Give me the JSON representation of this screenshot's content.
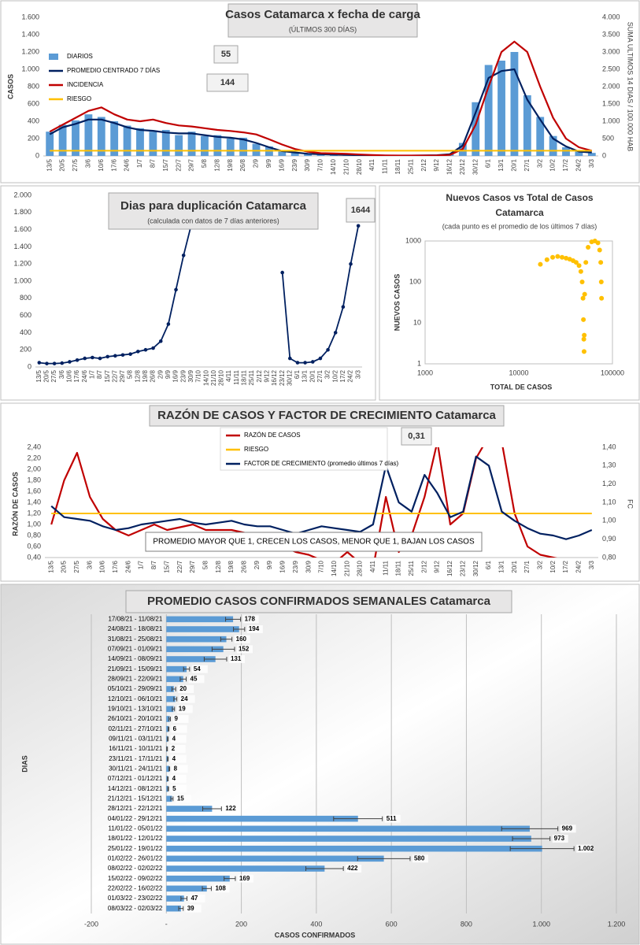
{
  "chart_data": [
    {
      "type": "combo",
      "title": "Casos Catamarca x fecha de carga",
      "subtitle": "(ÚLTIMOS 300 DÍAS)",
      "y_label": "CASOS",
      "y2_label": "SUMA  ULTIMOS 14 DIAS / 100.000 HAB",
      "annotations": [
        "55",
        "144"
      ],
      "categories": [
        "13/5",
        "20/5",
        "27/5",
        "3/6",
        "10/6",
        "17/6",
        "24/6",
        "1/7",
        "8/7",
        "15/7",
        "22/7",
        "29/7",
        "5/8",
        "12/8",
        "19/8",
        "26/8",
        "2/9",
        "9/9",
        "16/9",
        "23/9",
        "30/9",
        "7/10",
        "14/10",
        "21/10",
        "28/10",
        "4/11",
        "11/11",
        "18/11",
        "25/11",
        "2/12",
        "9/12",
        "16/12",
        "23/12",
        "30/12",
        "6/1",
        "13/1",
        "20/1",
        "27/1",
        "3/2",
        "10/2",
        "17/2",
        "24/2",
        "3/3"
      ],
      "series": [
        {
          "name": "DIARIOS",
          "type": "bar",
          "axis": "y",
          "color": "#5b9bd5",
          "values": [
            280,
            360,
            410,
            480,
            450,
            400,
            350,
            320,
            280,
            300,
            240,
            280,
            230,
            240,
            200,
            210,
            140,
            110,
            60,
            35,
            30,
            18,
            16,
            10,
            9,
            6,
            3,
            5,
            4,
            6,
            9,
            25,
            150,
            620,
            1050,
            1100,
            1200,
            700,
            450,
            230,
            100,
            60,
            35
          ]
        },
        {
          "name": "PROMEDIO CENTRADO 7 DÍAS",
          "type": "line",
          "axis": "y",
          "color": "#002060",
          "values": [
            250,
            330,
            370,
            420,
            420,
            380,
            330,
            300,
            290,
            270,
            260,
            260,
            240,
            220,
            210,
            190,
            150,
            100,
            55,
            40,
            25,
            20,
            15,
            12,
            8,
            5,
            4,
            4,
            4,
            5,
            8,
            20,
            120,
            500,
            900,
            980,
            1000,
            650,
            420,
            200,
            110,
            50,
            40
          ]
        },
        {
          "name": "INCIDENCIA",
          "type": "line",
          "axis": "y2",
          "color": "#c00000",
          "values": [
            700,
            900,
            1100,
            1300,
            1400,
            1200,
            1050,
            1000,
            1050,
            950,
            880,
            850,
            800,
            750,
            720,
            680,
            620,
            480,
            330,
            200,
            120,
            80,
            70,
            60,
            40,
            25,
            15,
            12,
            12,
            12,
            15,
            30,
            200,
            900,
            2000,
            3000,
            3300,
            3000,
            2000,
            1100,
            500,
            250,
            150
          ]
        },
        {
          "name": "RIESGO",
          "type": "line",
          "axis": "y2",
          "color": "#ffc000",
          "values": [
            150,
            150,
            150,
            150,
            150,
            150,
            150,
            150,
            150,
            150,
            150,
            150,
            150,
            150,
            150,
            150,
            150,
            150,
            150,
            150,
            150,
            150,
            150,
            150,
            150,
            150,
            150,
            150,
            150,
            150,
            150,
            150,
            150,
            150,
            150,
            150,
            150,
            150,
            150,
            150,
            150,
            150,
            150
          ]
        }
      ],
      "ylim": [
        0,
        1600
      ],
      "yticks": [
        0,
        200,
        400,
        600,
        800,
        {
          "value": 1000,
          "label": "1.000"
        },
        {
          "value": 1200,
          "label": "1.200"
        },
        {
          "value": 1400,
          "label": "1.400"
        },
        {
          "value": 1600,
          "label": "1.600"
        }
      ],
      "y2lim": [
        0,
        4000
      ],
      "y2ticks": [
        0,
        500,
        {
          "value": 1000,
          "label": "1.000"
        },
        {
          "value": 1500,
          "label": "1.500"
        },
        {
          "value": 2000,
          "label": "2.000"
        },
        {
          "value": 2500,
          "label": "2.500"
        },
        {
          "value": 3000,
          "label": "3.000"
        },
        {
          "value": 3500,
          "label": "3.500"
        },
        {
          "value": 4000,
          "label": "4.000"
        }
      ]
    },
    {
      "type": "line",
      "title": "Dias para duplicación Catamarca",
      "subtitle": "(calculada con datos de 7 días anteriores)",
      "annotations": [
        "1644"
      ],
      "categories": [
        "13/5",
        "20/5",
        "27/5",
        "3/6",
        "10/6",
        "17/6",
        "24/6",
        "1/7",
        "8/7",
        "15/7",
        "22/7",
        "29/7",
        "5/8",
        "12/8",
        "19/8",
        "26/8",
        "2/9",
        "9/9",
        "16/9",
        "23/9",
        "30/9",
        "7/10",
        "14/10",
        "21/10",
        "28/10",
        "4/11",
        "11/11",
        "18/11",
        "25/11",
        "2/12",
        "9/12",
        "16/12",
        "23/12",
        "30/12",
        "6/1",
        "13/1",
        "20/1",
        "27/1",
        "3/2",
        "10/2",
        "17/2",
        "24/2",
        "3/3"
      ],
      "color": "#002060",
      "values": [
        50,
        40,
        40,
        45,
        60,
        80,
        100,
        110,
        100,
        120,
        130,
        140,
        150,
        180,
        200,
        220,
        300,
        500,
        900,
        1300,
        1650,
        null,
        null,
        null,
        null,
        null,
        null,
        null,
        null,
        null,
        null,
        null,
        1100,
        100,
        50,
        50,
        60,
        100,
        200,
        400,
        700,
        1200,
        1644
      ],
      "ylim": [
        0,
        2000
      ],
      "yticks": [
        0,
        200,
        400,
        600,
        800,
        {
          "value": 1000,
          "label": "1.000"
        },
        {
          "value": 1200,
          "label": "1.200"
        },
        {
          "value": 1400,
          "label": "1.400"
        },
        {
          "value": 1600,
          "label": "1.600"
        },
        {
          "value": 1800,
          "label": "1.800"
        },
        {
          "value": 2000,
          "label": "2.000"
        }
      ]
    },
    {
      "type": "scatter",
      "title": "Nuevos Casos vs Total de Casos",
      "title_line2": "Catamarca",
      "subtitle": "(cada punto es el promedio de los últimos 7 días)",
      "x_label": "TOTAL DE CASOS",
      "y_label": "NUEVOS CASOS",
      "color": "#ffc000",
      "xlog": true,
      "ylog": true,
      "x": [
        17000,
        20000,
        23000,
        26000,
        29000,
        32000,
        35000,
        38000,
        41000,
        44000,
        46000,
        47500,
        48500,
        49000,
        49500,
        49800,
        50000,
        50500,
        52000,
        55000,
        60000,
        65000,
        70000,
        73000,
        75000,
        76000,
        76500
      ],
      "values": [
        270,
        350,
        400,
        420,
        400,
        380,
        360,
        330,
        300,
        250,
        180,
        100,
        40,
        12,
        4,
        2,
        5,
        50,
        300,
        700,
        950,
        1000,
        900,
        600,
        300,
        100,
        40
      ],
      "xlim": [
        1000,
        100000
      ],
      "xticks": [
        1000,
        10000,
        100000
      ],
      "ylim": [
        1,
        1000
      ],
      "yticks": [
        1,
        10,
        100,
        1000
      ]
    },
    {
      "type": "combo",
      "title": "RAZÓN DE CASOS Y FACTOR DE CRECIMIENTO Catamarca",
      "y_label": "RAZÓN DE CASOS",
      "y2_label": "FC",
      "annotations": [
        "0,31"
      ],
      "note": "PROMEDIO MAYOR QUE 1, CRECEN LOS CASOS, MENOR QUE 1, BAJAN LOS CASOS",
      "categories": [
        "13/5",
        "20/5",
        "27/5",
        "3/6",
        "10/6",
        "17/6",
        "24/6",
        "1/7",
        "8/7",
        "15/7",
        "22/7",
        "29/7",
        "5/8",
        "12/8",
        "19/8",
        "26/8",
        "2/9",
        "9/9",
        "16/9",
        "23/9",
        "30/9",
        "7/10",
        "14/10",
        "21/10",
        "28/10",
        "4/11",
        "11/11",
        "18/11",
        "25/11",
        "2/12",
        "9/12",
        "16/12",
        "23/12",
        "30/12",
        "6/1",
        "13/1",
        "20/1",
        "27/1",
        "3/2",
        "10/2",
        "17/2",
        "24/2",
        "3/3"
      ],
      "series": [
        {
          "name": "RAZÓN DE CASOS",
          "type": "line",
          "axis": "y",
          "color": "#c00000",
          "values": [
            1.0,
            1.8,
            2.3,
            1.5,
            1.1,
            0.9,
            0.8,
            0.9,
            1.0,
            0.9,
            0.95,
            1.0,
            0.9,
            0.9,
            0.9,
            0.85,
            0.8,
            0.7,
            0.6,
            0.5,
            0.45,
            0.35,
            0.3,
            0.5,
            0.3,
            0.2,
            1.5,
            0.5,
            0.8,
            1.5,
            2.5,
            1.0,
            1.2,
            2.2,
            2.6,
            2.5,
            1.2,
            0.6,
            0.45,
            0.4,
            0.35,
            0.3,
            0.31
          ]
        },
        {
          "name": "RIESGO",
          "type": "line",
          "axis": "y",
          "color": "#ffc000",
          "values": [
            1.2,
            1.2,
            1.2,
            1.2,
            1.2,
            1.2,
            1.2,
            1.2,
            1.2,
            1.2,
            1.2,
            1.2,
            1.2,
            1.2,
            1.2,
            1.2,
            1.2,
            1.2,
            1.2,
            1.2,
            1.2,
            1.2,
            1.2,
            1.2,
            1.2,
            1.2,
            1.2,
            1.2,
            1.2,
            1.2,
            1.2,
            1.2,
            1.2,
            1.2,
            1.2,
            1.2,
            1.2,
            1.2,
            1.2,
            1.2,
            1.2,
            1.2,
            1.2
          ]
        },
        {
          "name": "FACTOR DE CRECIMIENTO (promedio últimos 7 días)",
          "type": "line",
          "axis": "y2",
          "color": "#002060",
          "values": [
            1.08,
            1.02,
            1.01,
            1.0,
            0.97,
            0.95,
            0.96,
            0.98,
            0.99,
            1.0,
            1.01,
            0.99,
            0.98,
            0.99,
            1.0,
            0.98,
            0.97,
            0.97,
            0.95,
            0.93,
            0.95,
            0.97,
            0.96,
            0.95,
            0.94,
            0.98,
            1.3,
            1.1,
            1.05,
            1.25,
            1.15,
            1.02,
            1.05,
            1.35,
            1.3,
            1.05,
            1.0,
            0.96,
            0.93,
            0.92,
            0.9,
            0.92,
            0.95
          ]
        }
      ],
      "ylim": [
        0.4,
        2.4
      ],
      "yticks": [
        {
          "value": 0.4,
          "label": "0,40"
        },
        {
          "value": 0.6,
          "label": "0,60"
        },
        {
          "value": 0.8,
          "label": "0,80"
        },
        {
          "value": 1.0,
          "label": "1,00"
        },
        {
          "value": 1.2,
          "label": "1,20"
        },
        {
          "value": 1.4,
          "label": "1,40"
        },
        {
          "value": 1.6,
          "label": "1,60"
        },
        {
          "value": 1.8,
          "label": "1,80"
        },
        {
          "value": 2.0,
          "label": "2,00"
        },
        {
          "value": 2.2,
          "label": "2,20"
        },
        {
          "value": 2.4,
          "label": "2,40"
        }
      ],
      "y2lim": [
        0.8,
        1.4
      ],
      "y2ticks": [
        {
          "value": 0.8,
          "label": "0,80"
        },
        {
          "value": 0.9,
          "label": "0,90"
        },
        {
          "value": 1.0,
          "label": "1,00"
        },
        {
          "value": 1.1,
          "label": "1,10"
        },
        {
          "value": 1.2,
          "label": "1,20"
        },
        {
          "value": 1.3,
          "label": "1,30"
        },
        {
          "value": 1.4,
          "label": "1,40"
        }
      ]
    },
    {
      "type": "hbar",
      "title": "PROMEDIO CASOS CONFIRMADOS SEMANALES Catamarca",
      "x_label": "CASOS CONFIRMADOS",
      "y_label": "DIAS",
      "color": "#5b9bd5",
      "categories": [
        "17/08/21 - 11/08/21",
        "24/08/21 - 18/08/21",
        "31/08/21 - 25/08/21",
        "07/09/21 - 01/09/21",
        "14/09/21 - 08/09/21",
        "21/09/21 - 15/09/21",
        "28/09/21 - 22/09/21",
        "05/10/21 - 29/09/21",
        "12/10/21 - 06/10/21",
        "19/10/21 - 13/10/21",
        "26/10/21 - 20/10/21",
        "02/11/21 - 27/10/21",
        "09/11/21 - 03/11/21",
        "16/11/21 - 10/11/21",
        "23/11/21 - 17/11/21",
        "30/11/21 - 24/11/21",
        "07/12/21 - 01/12/21",
        "14/12/21 - 08/12/21",
        "21/12/21 - 15/12/21",
        "28/12/21 - 22/12/21",
        "04/01/22 - 29/12/21",
        "11/01/22 - 05/01/22",
        "18/01/22 - 12/01/22",
        "25/01/22 - 19/01/22",
        "01/02/22 - 26/01/22",
        "08/02/22 - 02/02/22",
        "15/02/22 - 09/02/22",
        "22/02/22 - 16/02/22",
        "01/03/22 - 23/02/22",
        "08/03/22 - 02/03/22"
      ],
      "values": [
        178,
        194,
        160,
        152,
        131,
        54,
        45,
        20,
        24,
        19,
        9,
        6,
        4,
        2,
        4,
        8,
        4,
        5,
        15,
        122,
        511,
        969,
        973,
        1002,
        580,
        422,
        169,
        108,
        47,
        39
      ],
      "value_labels": [
        "178",
        "194",
        "160",
        "152",
        "131",
        "54",
        "45",
        "20",
        "24",
        "19",
        "9",
        "6",
        "4",
        "2",
        "4",
        "8",
        "4",
        "5",
        "15",
        "122",
        "511",
        "969",
        "973",
        "1.002",
        "580",
        "422",
        "169",
        "108",
        "47",
        "39"
      ],
      "errors": [
        20,
        15,
        15,
        30,
        30,
        8,
        8,
        5,
        4,
        3,
        2,
        1,
        1,
        1,
        1,
        1,
        1,
        1,
        3,
        25,
        65,
        75,
        50,
        85,
        70,
        50,
        15,
        12,
        8,
        6
      ],
      "xlim": [
        -200,
        1200
      ],
      "xticks": [
        -200,
        {
          "value": 0,
          "label": "-"
        },
        200,
        400,
        600,
        800,
        {
          "value": 1000,
          "label": "1.000"
        },
        {
          "value": 1200,
          "label": "1.200"
        }
      ],
      "grid": true
    }
  ]
}
